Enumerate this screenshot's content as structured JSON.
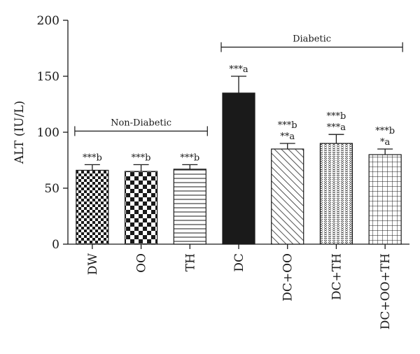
{
  "chart_data": {
    "type": "bar",
    "ylabel": "ALT (IU/L)",
    "xlabel": "",
    "title": "",
    "ylim": [
      0,
      200
    ],
    "yticks": [
      0,
      50,
      100,
      150,
      200
    ],
    "categories": [
      "DW",
      "OO",
      "TH",
      "DC",
      "DC+OO",
      "DC+TH",
      "DC+OO+TH"
    ],
    "values": [
      66,
      65,
      67,
      135,
      85,
      90,
      80
    ],
    "errors": [
      5,
      6,
      4,
      15,
      5,
      8,
      5
    ],
    "patterns": [
      "checker-small",
      "checker-large",
      "hlines",
      "solid",
      "diagonal",
      "dots",
      "grid"
    ],
    "annotations": [
      [
        "***b"
      ],
      [
        "***b"
      ],
      [
        "***b"
      ],
      [
        "***a"
      ],
      [
        "***b",
        "**a"
      ],
      [
        "***b",
        "***a"
      ],
      [
        "***b",
        "*a"
      ]
    ],
    "groups": [
      {
        "label": "Non-Diabetic",
        "from": 0,
        "to": 2,
        "y": 101
      },
      {
        "label": "Diabetic",
        "from": 3,
        "to": 6,
        "y": 176
      }
    ],
    "colors": {
      "bar_stroke": "#1a1a1a",
      "solid_fill": "#1a1a1a",
      "axis": "#1a1a1a"
    }
  }
}
